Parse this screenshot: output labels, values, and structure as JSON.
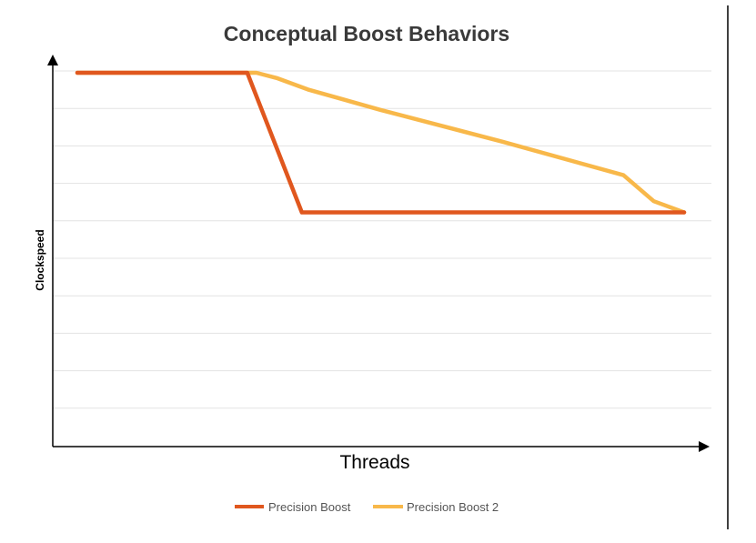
{
  "chart_data": {
    "type": "line",
    "title": "Conceptual Boost Behaviors",
    "xlabel": "Threads",
    "ylabel": "Clockspeed",
    "x_axis_arrow": true,
    "y_axis_arrow": true,
    "tick_labels": false,
    "grid": "horizontal",
    "xlim": [
      0,
      100
    ],
    "ylim": [
      0,
      100
    ],
    "legend_position": "bottom-center",
    "series": [
      {
        "name": "Precision Boost",
        "color": "#E0571E",
        "points": [
          [
            0,
            100
          ],
          [
            28,
            100
          ],
          [
            37,
            62.5
          ],
          [
            100,
            62.5
          ]
        ]
      },
      {
        "name": "Precision Boost 2",
        "color": "#F8B84A",
        "points": [
          [
            0,
            100
          ],
          [
            29.5,
            100
          ],
          [
            33,
            98.5
          ],
          [
            38,
            95.5
          ],
          [
            50,
            90
          ],
          [
            70,
            81.5
          ],
          [
            90,
            72.5
          ],
          [
            95,
            65.5
          ],
          [
            100,
            62.5
          ]
        ]
      }
    ],
    "colors": {
      "grid": "#e3e3e3",
      "axis": "#000000",
      "title": "#3a3a3a",
      "frame_line": "#000000"
    }
  }
}
